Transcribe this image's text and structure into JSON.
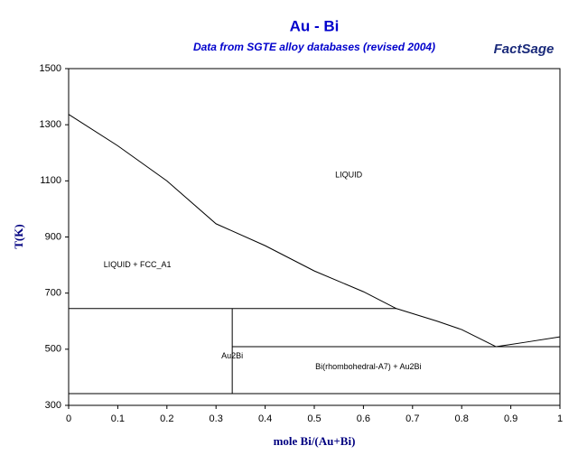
{
  "chart_data": {
    "type": "line",
    "title": "Au - Bi",
    "subtitle": "Data from SGTE alloy databases (revised 2004)",
    "logo": "FactSage",
    "xlabel": "mole Bi/(Au+Bi)",
    "ylabel": "T(K)",
    "xlim": [
      0,
      1
    ],
    "ylim": [
      300,
      1500
    ],
    "xticks": [
      0,
      0.1,
      0.2,
      0.3,
      0.4,
      0.5,
      0.6,
      0.7,
      0.8,
      0.9,
      1
    ],
    "yticks": [
      300,
      500,
      700,
      900,
      1100,
      1300,
      1500
    ],
    "series": [
      {
        "color": "#000000",
        "x": [
          0,
          0.1,
          0.2,
          0.3,
          0.4,
          0.5,
          0.6,
          0.667,
          0.75,
          0.8,
          0.87,
          0.93,
          1
        ],
        "values": [
          1337,
          1225,
          1100,
          947,
          869,
          779,
          705,
          645,
          600,
          570,
          509,
          525,
          544
        ]
      },
      {
        "color": "#000000",
        "x": [
          0,
          0.667
        ],
        "values": [
          645,
          645
        ]
      },
      {
        "color": "#000000",
        "x": [
          0.333,
          1
        ],
        "values": [
          509,
          509
        ]
      },
      {
        "color": "#000000",
        "x": [
          0,
          1
        ],
        "values": [
          342,
          342
        ]
      },
      {
        "color": "#000000",
        "x": [
          0.333,
          0.333
        ],
        "values": [
          342,
          645
        ]
      }
    ],
    "annotations": [
      "LIQUID",
      "LIQUID + FCC_A1",
      "Au2Bi",
      "Bi(rhombohedral-A7) + Au2Bi"
    ]
  }
}
